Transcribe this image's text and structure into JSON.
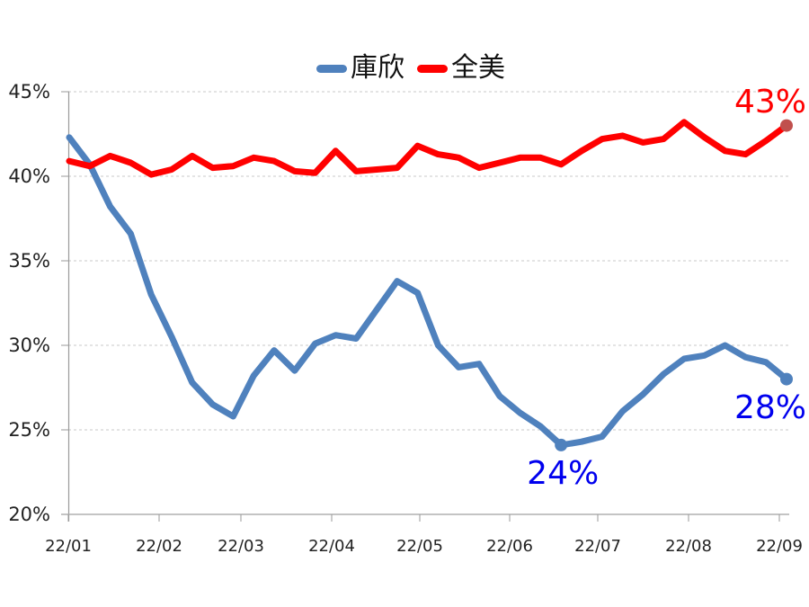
{
  "chart_data": {
    "type": "line",
    "title": "",
    "xlabel": "",
    "ylabel": "",
    "ylim": [
      20,
      45
    ],
    "yticks": [
      "20%",
      "25%",
      "30%",
      "35%",
      "40%",
      "45%"
    ],
    "ytick_values": [
      20,
      25,
      30,
      35,
      40,
      45
    ],
    "x_tick_labels": [
      "22/01",
      "22/02",
      "22/03",
      "22/04",
      "22/05",
      "22/06",
      "22/07",
      "22/08",
      "22/09"
    ],
    "grid": "horizontal dashed",
    "legend_position": "top-center",
    "series": [
      {
        "name": "庫欣",
        "color": "#4f81bd",
        "values": [
          42.3,
          40.7,
          38.2,
          36.6,
          33.0,
          30.5,
          27.8,
          26.5,
          25.8,
          28.2,
          29.7,
          28.5,
          30.1,
          30.6,
          30.4,
          32.1,
          33.8,
          33.1,
          30.0,
          28.7,
          28.9,
          27.0,
          26.0,
          25.2,
          24.1,
          24.3,
          24.6,
          26.1,
          27.1,
          28.3,
          29.2,
          29.4,
          30.0,
          29.3,
          29.0,
          28.0
        ]
      },
      {
        "name": "全美",
        "color": "#ff0000",
        "values": [
          40.9,
          40.6,
          41.2,
          40.8,
          40.1,
          40.4,
          41.2,
          40.5,
          40.6,
          41.1,
          40.9,
          40.3,
          40.2,
          41.5,
          40.3,
          40.4,
          40.5,
          41.8,
          41.3,
          41.1,
          40.5,
          40.8,
          41.1,
          41.1,
          40.7,
          41.5,
          42.2,
          42.4,
          42.0,
          42.2,
          43.2,
          42.3,
          41.5,
          41.3,
          42.1,
          43.0
        ]
      }
    ],
    "annotations": [
      {
        "text": "43%",
        "series": "全美",
        "point_index": 35,
        "color": "#ff0000"
      },
      {
        "text": "24%",
        "series": "庫欣",
        "point_index": 24,
        "color": "#0000ee"
      },
      {
        "text": "28%",
        "series": "庫欣",
        "point_index": 35,
        "color": "#0000ee"
      }
    ]
  },
  "legend": {
    "items": [
      {
        "label": "庫欣",
        "color": "#4f81bd"
      },
      {
        "label": "全美",
        "color": "#ff0000"
      }
    ]
  }
}
